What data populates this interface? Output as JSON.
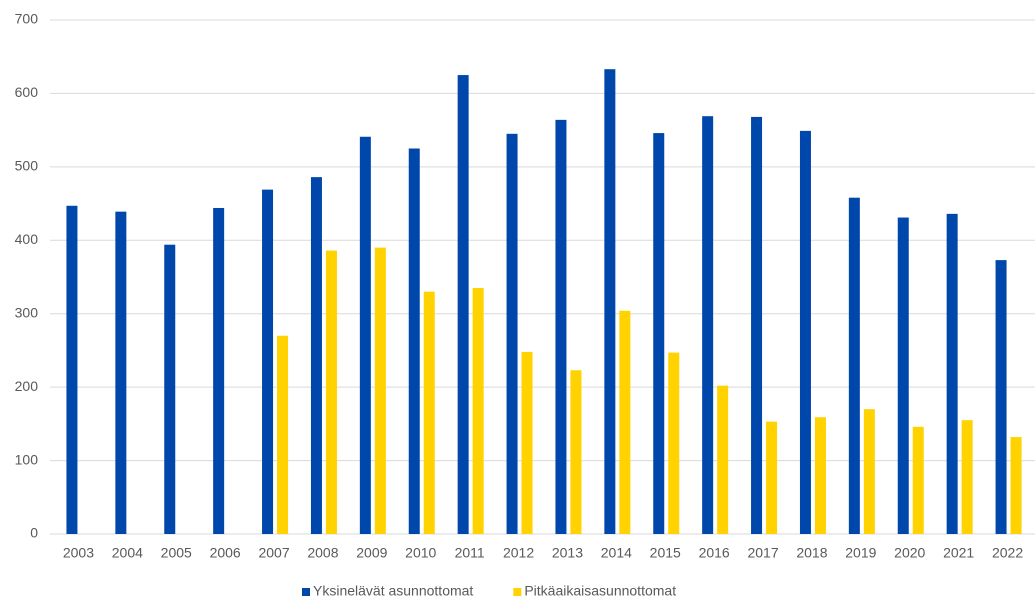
{
  "chart_data": {
    "type": "bar",
    "categories": [
      "2003",
      "2004",
      "2005",
      "2006",
      "2007",
      "2008",
      "2009",
      "2010",
      "2011",
      "2012",
      "2013",
      "2014",
      "2015",
      "2016",
      "2017",
      "2018",
      "2019",
      "2020",
      "2021",
      "2022"
    ],
    "series": [
      {
        "name": "Yksinelävät asunnottomat",
        "color": "#0047ab",
        "values": [
          447,
          439,
          394,
          444,
          469,
          486,
          541,
          525,
          625,
          545,
          564,
          633,
          546,
          569,
          568,
          549,
          458,
          431,
          436,
          373
        ]
      },
      {
        "name": "Pitkäaikaisasunnottomat",
        "color": "#ffd200",
        "values": [
          null,
          null,
          null,
          null,
          270,
          386,
          390,
          330,
          335,
          248,
          223,
          304,
          247,
          202,
          153,
          159,
          170,
          146,
          155,
          132
        ]
      }
    ],
    "ylim": [
      0,
      700
    ],
    "yticks": [
      0,
      100,
      200,
      300,
      400,
      500,
      600,
      700
    ],
    "grid": true,
    "legend": "bottom"
  }
}
